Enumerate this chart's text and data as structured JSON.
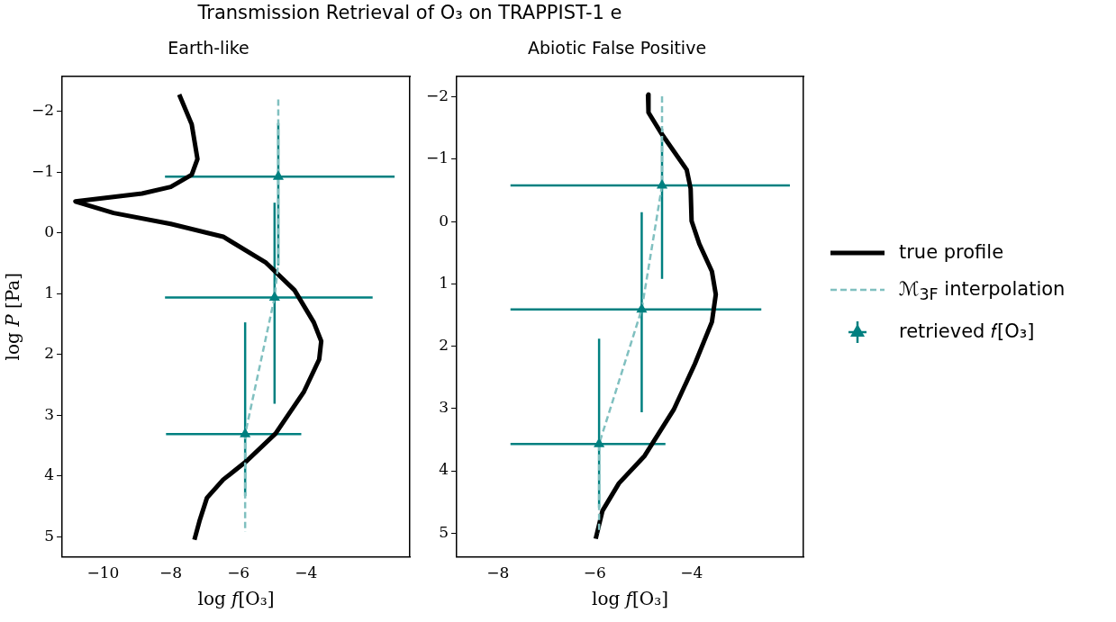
{
  "chart_data": [
    {
      "type": "line",
      "title": "Earth-like",
      "annotations": [
        "Transmission Retrieval of O₃ on TRAPPIST-1 e"
      ],
      "xlabel": "log 𝑓[O₃]",
      "ylabel": "log 𝑃 [Pa]",
      "xlim": [
        -11.21,
        -0.93
      ],
      "ylim": [
        5.33,
        -2.58
      ],
      "xticks": [
        -10,
        -8,
        -6,
        -4
      ],
      "yticks": [
        -2,
        -1,
        0,
        1,
        2,
        3,
        4,
        5
      ],
      "grid": false,
      "legend": false,
      "series": [
        {
          "type": "line",
          "color": "#000000",
          "x": [
            -7.75,
            -7.38,
            -7.21,
            -7.38,
            -8.0,
            -8.85,
            -10.82,
            -9.69,
            -8.0,
            -6.45,
            -5.18,
            -4.34,
            -3.77,
            -3.55,
            -3.61,
            -4.06,
            -4.9,
            -5.75,
            -6.45,
            -6.93,
            -7.15,
            -7.3
          ],
          "values": [
            -2.28,
            -1.79,
            -1.22,
            -0.96,
            -0.76,
            -0.65,
            -0.52,
            -0.33,
            -0.15,
            0.06,
            0.49,
            0.94,
            1.47,
            1.78,
            2.08,
            2.61,
            3.3,
            3.75,
            4.06,
            4.36,
            4.74,
            5.05
          ]
        },
        {
          "type": "line",
          "color": "#80c0c0",
          "line_style": "dashed",
          "x": [
            -4.82,
            -4.82,
            -4.93,
            -5.8,
            -5.8
          ],
          "values": [
            -2.2,
            0.49,
            1.06,
            3.31,
            4.92
          ]
        },
        {
          "type": "scatter",
          "color": "#008080",
          "marker": "triangle",
          "x": [
            -4.82,
            -4.93,
            -5.8
          ],
          "values": [
            -0.93,
            1.06,
            3.31
          ],
          "errors": [
            [
              -1.81,
              0.53
            ],
            [
              -0.5,
              2.81
            ],
            [
              1.47,
              4.33
            ]
          ],
          "xerrors": [
            [
              -8.17,
              -1.38
            ],
            [
              -8.17,
              -2.03
            ],
            [
              -8.14,
              -4.14
            ]
          ]
        }
      ]
    },
    {
      "type": "line",
      "title": "Abiotic False Positive",
      "xlabel": "log 𝑓[O₃]",
      "xlim": [
        -8.85,
        -1.69
      ],
      "ylim": [
        5.38,
        -2.33
      ],
      "xticks": [
        -8,
        -6,
        -4
      ],
      "yticks": [
        -2,
        -1,
        0,
        1,
        2,
        3,
        4,
        5
      ],
      "grid": false,
      "legend": "right",
      "series": [
        {
          "type": "line",
          "name": "true profile",
          "color": "#000000",
          "x": [
            -4.9,
            -4.89,
            -4.63,
            -4.1,
            -4.02,
            -4.0,
            -3.84,
            -3.58,
            -3.5,
            -3.58,
            -3.93,
            -4.37,
            -4.97,
            -5.5,
            -5.84,
            -5.98
          ],
          "values": [
            -2.04,
            -1.75,
            -1.42,
            -0.83,
            -0.53,
            -0.01,
            0.36,
            0.8,
            1.17,
            1.61,
            2.28,
            3.02,
            3.76,
            4.2,
            4.64,
            5.09
          ]
        },
        {
          "type": "line",
          "name": "ℳ$_{3F}$ interpolation",
          "color": "#80c0c0",
          "line_style": "dashed",
          "x": [
            -4.61,
            -4.61,
            -5.03,
            -5.91,
            -5.91
          ],
          "values": [
            -2.01,
            -0.58,
            1.41,
            3.57,
            5.01
          ]
        },
        {
          "type": "scatter",
          "name": "retrieved 𝑓[O₃]",
          "color": "#008080",
          "marker": "triangle",
          "x": [
            -4.61,
            -5.03,
            -5.91
          ],
          "values": [
            -0.58,
            1.41,
            3.57
          ],
          "errors": [
            [
              -1.49,
              0.92
            ],
            [
              -0.15,
              3.06
            ],
            [
              1.88,
              4.59
            ]
          ],
          "xerrors": [
            [
              -7.74,
              -1.97
            ],
            [
              -7.74,
              -2.56
            ],
            [
              -7.74,
              -4.54
            ]
          ]
        }
      ]
    }
  ]
}
